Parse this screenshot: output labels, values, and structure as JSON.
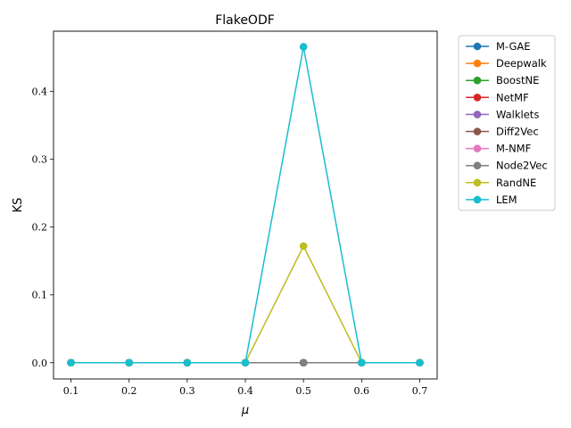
{
  "chart_data": {
    "type": "line",
    "title": "FlakeODF",
    "xlabel": "μ",
    "ylabel": "KS",
    "x": [
      0.1,
      0.2,
      0.3,
      0.4,
      0.5,
      0.6,
      0.7
    ],
    "x_tick_labels": [
      "0.1",
      "0.2",
      "0.3",
      "0.4",
      "0.5",
      "0.6",
      "0.7"
    ],
    "y_tick_values": [
      0.0,
      0.1,
      0.2,
      0.3,
      0.4
    ],
    "y_tick_labels": [
      "0.0",
      "0.1",
      "0.2",
      "0.3",
      "0.4"
    ],
    "xlim": [
      0.07,
      0.73
    ],
    "ylim": [
      -0.024,
      0.489
    ],
    "grid": false,
    "legend_position": "outside-right",
    "series": [
      {
        "name": "M-GAE",
        "color": "#1f77b4",
        "values": [
          0,
          0,
          0,
          0,
          0,
          0,
          0
        ]
      },
      {
        "name": "Deepwalk",
        "color": "#ff7f0e",
        "values": [
          0,
          0,
          0,
          0,
          0,
          0,
          0
        ]
      },
      {
        "name": "BoostNE",
        "color": "#2ca02c",
        "values": [
          0,
          0,
          0,
          0,
          0,
          0,
          0
        ]
      },
      {
        "name": "NetMF",
        "color": "#d62728",
        "values": [
          0,
          0,
          0,
          0,
          0,
          0,
          0
        ]
      },
      {
        "name": "Walklets",
        "color": "#9467bd",
        "values": [
          0,
          0,
          0,
          0,
          0,
          0,
          0
        ]
      },
      {
        "name": "Diff2Vec",
        "color": "#8c564b",
        "values": [
          0,
          0,
          0,
          0,
          0,
          0,
          0
        ]
      },
      {
        "name": "M-NMF",
        "color": "#e377c2",
        "values": [
          0,
          0,
          0,
          0,
          0,
          0,
          0
        ]
      },
      {
        "name": "Node2Vec",
        "color": "#7f7f7f",
        "values": [
          0,
          0,
          0,
          0,
          0,
          0,
          0
        ]
      },
      {
        "name": "RandNE",
        "color": "#bcbd22",
        "values": [
          0,
          0,
          0,
          0,
          0.172,
          0,
          0
        ]
      },
      {
        "name": "LEM",
        "color": "#17becf",
        "values": [
          0,
          0,
          0,
          0,
          0.466,
          0,
          0
        ]
      }
    ]
  }
}
